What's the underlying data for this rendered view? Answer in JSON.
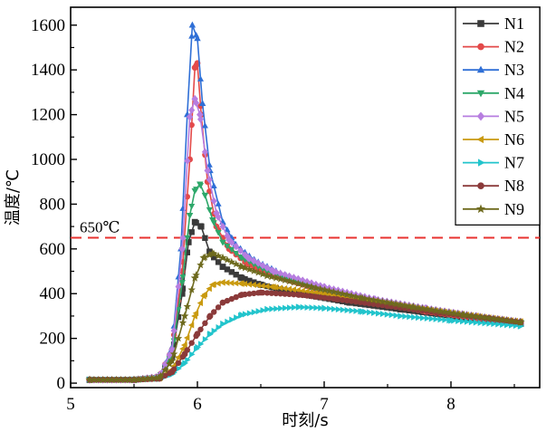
{
  "chart_data": {
    "type": "line",
    "xlabel": "时刻/s",
    "ylabel": "温度/℃",
    "xlim": [
      5,
      8.7
    ],
    "ylim": [
      -20,
      1680
    ],
    "xticks": [
      5,
      6,
      7,
      8
    ],
    "yticks": [
      0,
      200,
      400,
      600,
      800,
      1000,
      1200,
      1400,
      1600
    ],
    "grid": false,
    "legend_position": "top-right",
    "threshold": {
      "value": 650,
      "label": "650℃",
      "color": "#e8322f"
    },
    "series": [
      {
        "name": "N1",
        "color": "#3a3a3a",
        "marker": "square",
        "points": [
          [
            5.15,
            15
          ],
          [
            5.5,
            15
          ],
          [
            5.7,
            25
          ],
          [
            5.8,
            120
          ],
          [
            5.88,
            400
          ],
          [
            5.93,
            630
          ],
          [
            5.98,
            720
          ],
          [
            6.03,
            700
          ],
          [
            6.1,
            580
          ],
          [
            6.2,
            520
          ],
          [
            6.35,
            470
          ],
          [
            6.5,
            440
          ],
          [
            6.8,
            400
          ],
          [
            7.2,
            360
          ],
          [
            7.6,
            330
          ],
          [
            8.0,
            300
          ],
          [
            8.55,
            265
          ]
        ]
      },
      {
        "name": "N2",
        "color": "#e34a4a",
        "marker": "circle",
        "points": [
          [
            5.15,
            15
          ],
          [
            5.5,
            15
          ],
          [
            5.7,
            30
          ],
          [
            5.8,
            150
          ],
          [
            5.88,
            500
          ],
          [
            5.94,
            1000
          ],
          [
            5.98,
            1410
          ],
          [
            6.0,
            1430
          ],
          [
            6.03,
            1200
          ],
          [
            6.08,
            900
          ],
          [
            6.15,
            700
          ],
          [
            6.25,
            600
          ],
          [
            6.4,
            530
          ],
          [
            6.6,
            480
          ],
          [
            7.0,
            410
          ],
          [
            7.4,
            360
          ],
          [
            7.8,
            320
          ],
          [
            8.2,
            290
          ],
          [
            8.55,
            270
          ]
        ]
      },
      {
        "name": "N3",
        "color": "#2f6fd6",
        "marker": "triangle-up",
        "points": [
          [
            5.15,
            15
          ],
          [
            5.5,
            15
          ],
          [
            5.7,
            30
          ],
          [
            5.8,
            160
          ],
          [
            5.87,
            600
          ],
          [
            5.92,
            1200
          ],
          [
            5.96,
            1600
          ],
          [
            6.0,
            1540
          ],
          [
            6.04,
            1250
          ],
          [
            6.1,
            950
          ],
          [
            6.2,
            720
          ],
          [
            6.3,
            620
          ],
          [
            6.45,
            550
          ],
          [
            6.7,
            480
          ],
          [
            7.0,
            420
          ],
          [
            7.4,
            370
          ],
          [
            7.8,
            330
          ],
          [
            8.2,
            295
          ],
          [
            8.55,
            270
          ]
        ]
      },
      {
        "name": "N4",
        "color": "#2ea86a",
        "marker": "triangle-down",
        "points": [
          [
            5.15,
            15
          ],
          [
            5.5,
            15
          ],
          [
            5.7,
            28
          ],
          [
            5.8,
            130
          ],
          [
            5.88,
            450
          ],
          [
            5.94,
            750
          ],
          [
            5.98,
            860
          ],
          [
            6.02,
            890
          ],
          [
            6.06,
            840
          ],
          [
            6.12,
            730
          ],
          [
            6.2,
            630
          ],
          [
            6.35,
            560
          ],
          [
            6.55,
            500
          ],
          [
            6.9,
            430
          ],
          [
            7.3,
            380
          ],
          [
            7.7,
            340
          ],
          [
            8.1,
            305
          ],
          [
            8.55,
            272
          ]
        ]
      },
      {
        "name": "N5",
        "color": "#b77ee0",
        "marker": "diamond",
        "points": [
          [
            5.15,
            15
          ],
          [
            5.5,
            15
          ],
          [
            5.7,
            30
          ],
          [
            5.8,
            150
          ],
          [
            5.88,
            600
          ],
          [
            5.94,
            1190
          ],
          [
            5.98,
            1270
          ],
          [
            6.02,
            1200
          ],
          [
            6.08,
            950
          ],
          [
            6.15,
            760
          ],
          [
            6.25,
            640
          ],
          [
            6.4,
            560
          ],
          [
            6.6,
            500
          ],
          [
            7.0,
            430
          ],
          [
            7.4,
            375
          ],
          [
            7.8,
            335
          ],
          [
            8.2,
            300
          ],
          [
            8.55,
            275
          ]
        ]
      },
      {
        "name": "N6",
        "color": "#c99a10",
        "marker": "triangle-left",
        "points": [
          [
            5.15,
            15
          ],
          [
            5.5,
            15
          ],
          [
            5.7,
            22
          ],
          [
            5.8,
            60
          ],
          [
            5.9,
            170
          ],
          [
            5.98,
            300
          ],
          [
            6.05,
            390
          ],
          [
            6.12,
            440
          ],
          [
            6.2,
            450
          ],
          [
            6.35,
            445
          ],
          [
            6.6,
            430
          ],
          [
            7.0,
            400
          ],
          [
            7.4,
            365
          ],
          [
            7.8,
            330
          ],
          [
            8.2,
            300
          ],
          [
            8.55,
            275
          ]
        ]
      },
      {
        "name": "N7",
        "color": "#22c4cc",
        "marker": "triangle-right",
        "points": [
          [
            5.15,
            15
          ],
          [
            5.5,
            15
          ],
          [
            5.7,
            20
          ],
          [
            5.8,
            40
          ],
          [
            5.9,
            90
          ],
          [
            6.0,
            160
          ],
          [
            6.1,
            220
          ],
          [
            6.2,
            265
          ],
          [
            6.35,
            305
          ],
          [
            6.55,
            330
          ],
          [
            6.8,
            340
          ],
          [
            7.0,
            335
          ],
          [
            7.3,
            320
          ],
          [
            7.6,
            300
          ],
          [
            8.0,
            280
          ],
          [
            8.55,
            255
          ]
        ]
      },
      {
        "name": "N8",
        "color": "#8b3a3a",
        "marker": "circle",
        "points": [
          [
            5.15,
            15
          ],
          [
            5.5,
            15
          ],
          [
            5.7,
            20
          ],
          [
            5.8,
            50
          ],
          [
            5.9,
            130
          ],
          [
            6.0,
            220
          ],
          [
            6.1,
            300
          ],
          [
            6.2,
            360
          ],
          [
            6.35,
            395
          ],
          [
            6.5,
            405
          ],
          [
            6.8,
            395
          ],
          [
            7.1,
            375
          ],
          [
            7.5,
            345
          ],
          [
            7.9,
            315
          ],
          [
            8.3,
            290
          ],
          [
            8.55,
            272
          ]
        ]
      },
      {
        "name": "N9",
        "color": "#6e6a1e",
        "marker": "star",
        "points": [
          [
            5.15,
            15
          ],
          [
            5.5,
            15
          ],
          [
            5.7,
            25
          ],
          [
            5.8,
            100
          ],
          [
            5.9,
            300
          ],
          [
            5.98,
            470
          ],
          [
            6.05,
            560
          ],
          [
            6.12,
            580
          ],
          [
            6.2,
            560
          ],
          [
            6.35,
            520
          ],
          [
            6.55,
            480
          ],
          [
            6.9,
            430
          ],
          [
            7.3,
            380
          ],
          [
            7.7,
            340
          ],
          [
            8.1,
            305
          ],
          [
            8.55,
            272
          ]
        ]
      }
    ]
  }
}
